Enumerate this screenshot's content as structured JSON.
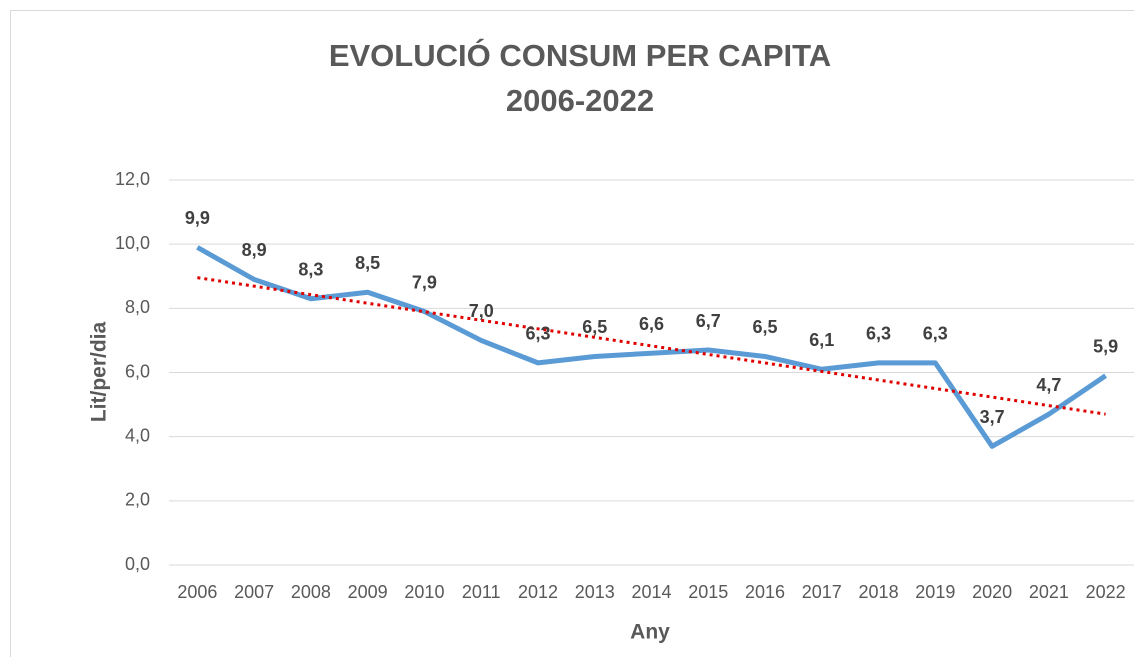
{
  "chart_data": {
    "type": "line",
    "title": "EVOLUCIÓ CONSUM PER CAPITA",
    "subtitle": "2006-2022",
    "x_label": "Any",
    "y_label": "Lit/per/dia",
    "categories": [
      "2006",
      "2007",
      "2008",
      "2009",
      "2010",
      "2011",
      "2012",
      "2013",
      "2014",
      "2015",
      "2016",
      "2017",
      "2018",
      "2019",
      "2020",
      "2021",
      "2022"
    ],
    "values": [
      9.9,
      8.9,
      8.3,
      8.5,
      7.9,
      7.0,
      6.3,
      6.5,
      6.6,
      6.7,
      6.5,
      6.1,
      6.3,
      6.3,
      3.7,
      4.7,
      5.9
    ],
    "value_labels": [
      "9,9",
      "8,9",
      "8,3",
      "8,5",
      "7,9",
      "7,0",
      "6,3",
      "6,5",
      "6,6",
      "6,7",
      "6,5",
      "6,1",
      "6,3",
      "6,3",
      "3,7",
      "4,7",
      "5,9"
    ],
    "color": "#5b9bd5",
    "trendline": {
      "type": "linear",
      "color": "#e00000"
    },
    "ylim": [
      0,
      12
    ],
    "yticks": [
      {
        "value": 0,
        "label": "0,0"
      },
      {
        "value": 2,
        "label": "2,0"
      },
      {
        "value": 4,
        "label": "4,0"
      },
      {
        "value": 6,
        "label": "6,0"
      },
      {
        "value": 8,
        "label": "8,0"
      },
      {
        "value": 10,
        "label": "10,0"
      },
      {
        "value": 12,
        "label": "12,0"
      }
    ],
    "grid": true
  }
}
